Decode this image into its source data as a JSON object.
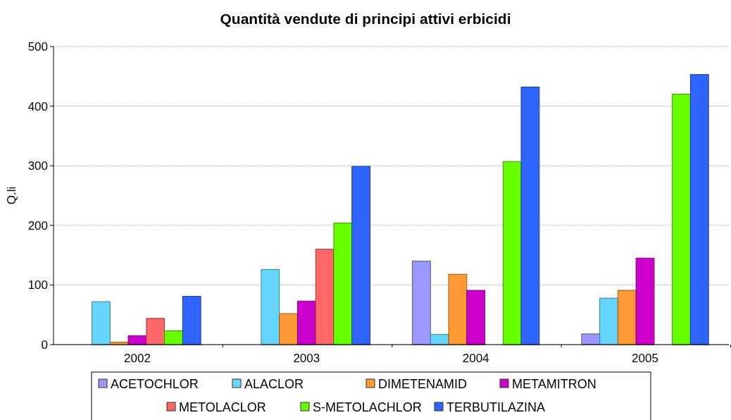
{
  "chart_data": {
    "type": "bar",
    "title": "Quantità vendute di principi attivi erbicidi",
    "ylabel": "Q.li",
    "categories": [
      "2002",
      "2003",
      "2004",
      "2005"
    ],
    "series": [
      {
        "name": "ACETOCHLOR",
        "color": "#9999ff",
        "values": [
          null,
          null,
          140,
          18
        ]
      },
      {
        "name": "ALACLOR",
        "color": "#66d5ff",
        "values": [
          72,
          126,
          17,
          78
        ]
      },
      {
        "name": "DIMETENAMID",
        "color": "#ff9933",
        "values": [
          4,
          52,
          118,
          91
        ]
      },
      {
        "name": "METAMITRON",
        "color": "#cc00cc",
        "values": [
          15,
          73,
          91,
          145
        ]
      },
      {
        "name": "METOLACLOR",
        "color": "#ff6666",
        "values": [
          44,
          160,
          null,
          null
        ]
      },
      {
        "name": "S-METOLACHLOR",
        "color": "#66ff00",
        "values": [
          23,
          204,
          307,
          420
        ]
      },
      {
        "name": "TERBUTILAZINA",
        "color": "#2e64ff",
        "values": [
          81,
          299,
          432,
          453
        ]
      }
    ],
    "ylim": [
      0,
      500
    ],
    "yticks": [
      0,
      100,
      200,
      300,
      400,
      500
    ],
    "grid": "y",
    "legend": "bottom"
  }
}
